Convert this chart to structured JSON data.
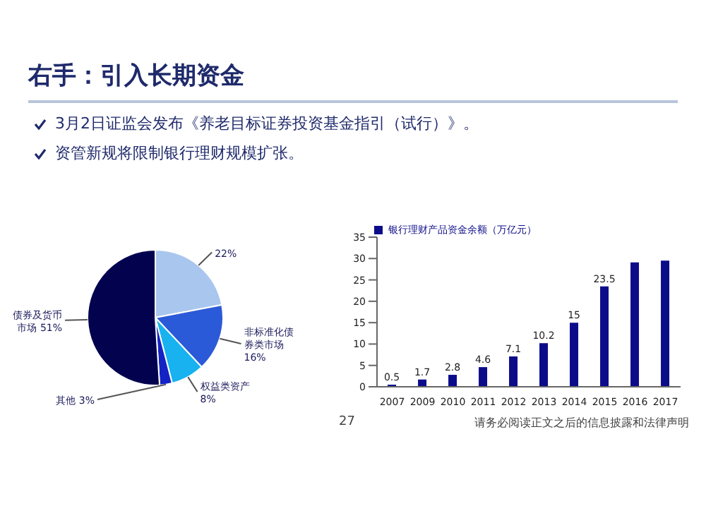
{
  "chart_data": [
    {
      "type": "pie",
      "title": "右手：引入长期资金",
      "annotations": [
        "3月2日证监会发布《养老目标证券投资基金指引（试行）》。",
        "资管新规将限制银行理财规模扩张。",
        "27",
        "请务必阅读正文之后的信息披露和法律声明"
      ],
      "categories": [
        null,
        "非标准化债券类市场",
        "权益类资产",
        "其他",
        "债券及货币市场"
      ],
      "values": [
        22,
        16,
        8,
        3,
        51
      ],
      "colors": [
        "#a9c6ee",
        "#2b5ad8",
        "#17b2ef",
        "#1323c4",
        "#02024f"
      ],
      "value_labels": [
        "22%",
        "16%",
        "8%",
        "3%",
        "51%"
      ],
      "legend": false
    },
    {
      "type": "bar",
      "categories": [
        "2007",
        "2009",
        "2010",
        "2011",
        "2012",
        "2013",
        "2014",
        "2015",
        "2016",
        "2017"
      ],
      "series": [
        {
          "name": "银行理财产品资金余额（万亿元）",
          "color": "#0c0c8a",
          "values": [
            0.5,
            1.7,
            2.8,
            4.6,
            7.1,
            10.2,
            15,
            23.5,
            29.1,
            29.5
          ],
          "value_labels": [
            "0.5",
            "1.7",
            "2.8",
            "4.6",
            "7.1",
            "10.2",
            "15",
            "23.5",
            null,
            null
          ]
        }
      ],
      "ylim": [
        0,
        35
      ],
      "yticks": [
        0,
        5,
        10,
        15,
        20,
        25,
        30,
        35
      ],
      "grid": false,
      "legend": "top left"
    }
  ]
}
